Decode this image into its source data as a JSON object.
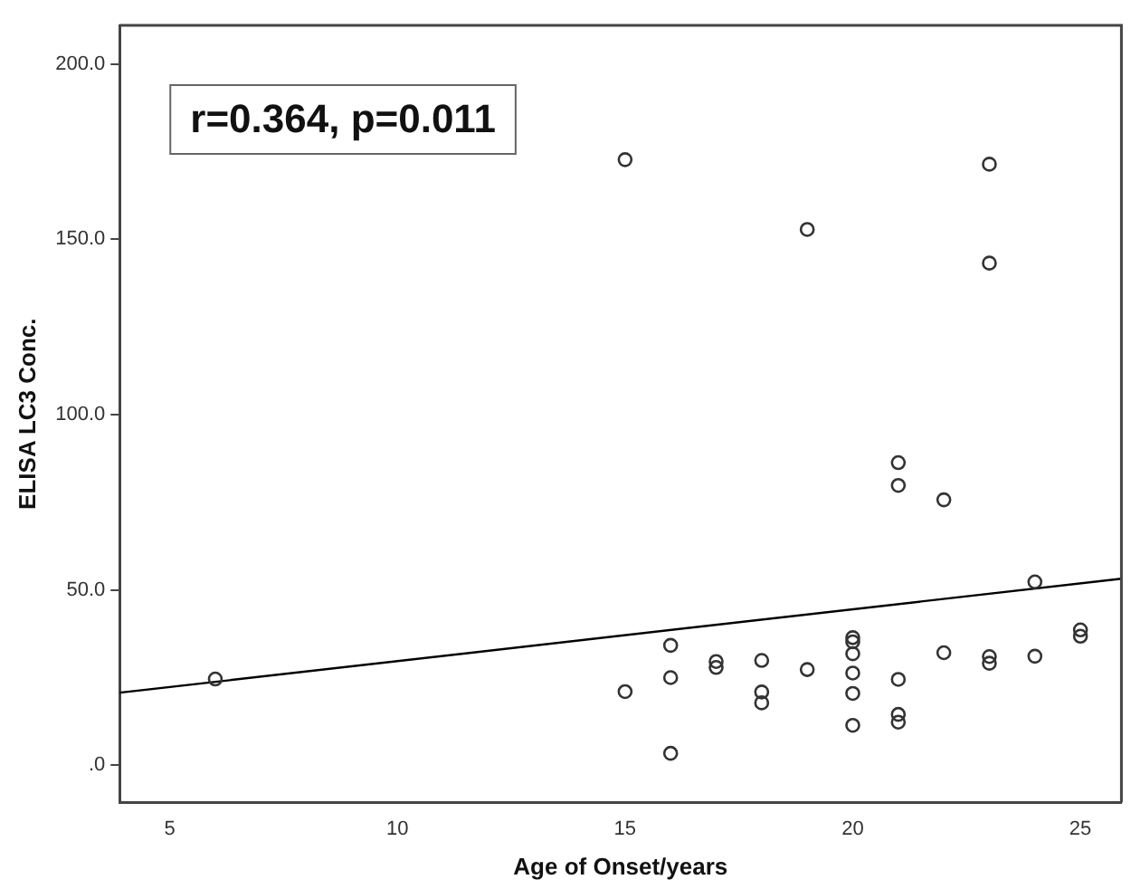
{
  "chart_data": {
    "type": "scatter",
    "xlabel": "Age of Onset/years",
    "ylabel": "ELISA LC3 Conc.",
    "xlim": [
      3.9,
      25.9
    ],
    "xticks": [
      5,
      10,
      15,
      20,
      25
    ],
    "ylim": [
      -10.6,
      211
    ],
    "yticks": [
      {
        "value": 0,
        "label": ".0"
      },
      {
        "value": 50,
        "label": "50.0"
      },
      {
        "value": 100,
        "label": "100.0"
      },
      {
        "value": 150,
        "label": "150.0"
      },
      {
        "value": 200,
        "label": "200.0"
      }
    ],
    "grid": false,
    "legend": false,
    "annotations": [
      "r=0.364, p=0.011"
    ],
    "series": [
      {
        "marker": "circle",
        "color": "#333333",
        "x": [
          6,
          15,
          15,
          16,
          16,
          16,
          17,
          17,
          18,
          18,
          18,
          19,
          19,
          20,
          20,
          20,
          20,
          20,
          20,
          21,
          21,
          21,
          21,
          21,
          22,
          22,
          23,
          23,
          23,
          23,
          24,
          24,
          25,
          25
        ],
        "values": [
          24.6,
          21.0,
          172.7,
          34.2,
          25.0,
          3.4,
          29.6,
          27.9,
          29.9,
          20.9,
          17.8,
          27.3,
          152.8,
          36.4,
          35.2,
          31.8,
          26.3,
          20.5,
          11.4,
          24.5,
          14.5,
          12.3,
          86.3,
          79.8,
          32.1,
          75.7,
          31.0,
          29.1,
          171.4,
          143.2,
          52.3,
          31.1,
          38.6,
          36.8
        ]
      },
      {
        "type": "line",
        "color": "#000000",
        "x": [
          3.9,
          25.9
        ],
        "values": [
          20.7,
          53.2
        ]
      }
    ]
  }
}
